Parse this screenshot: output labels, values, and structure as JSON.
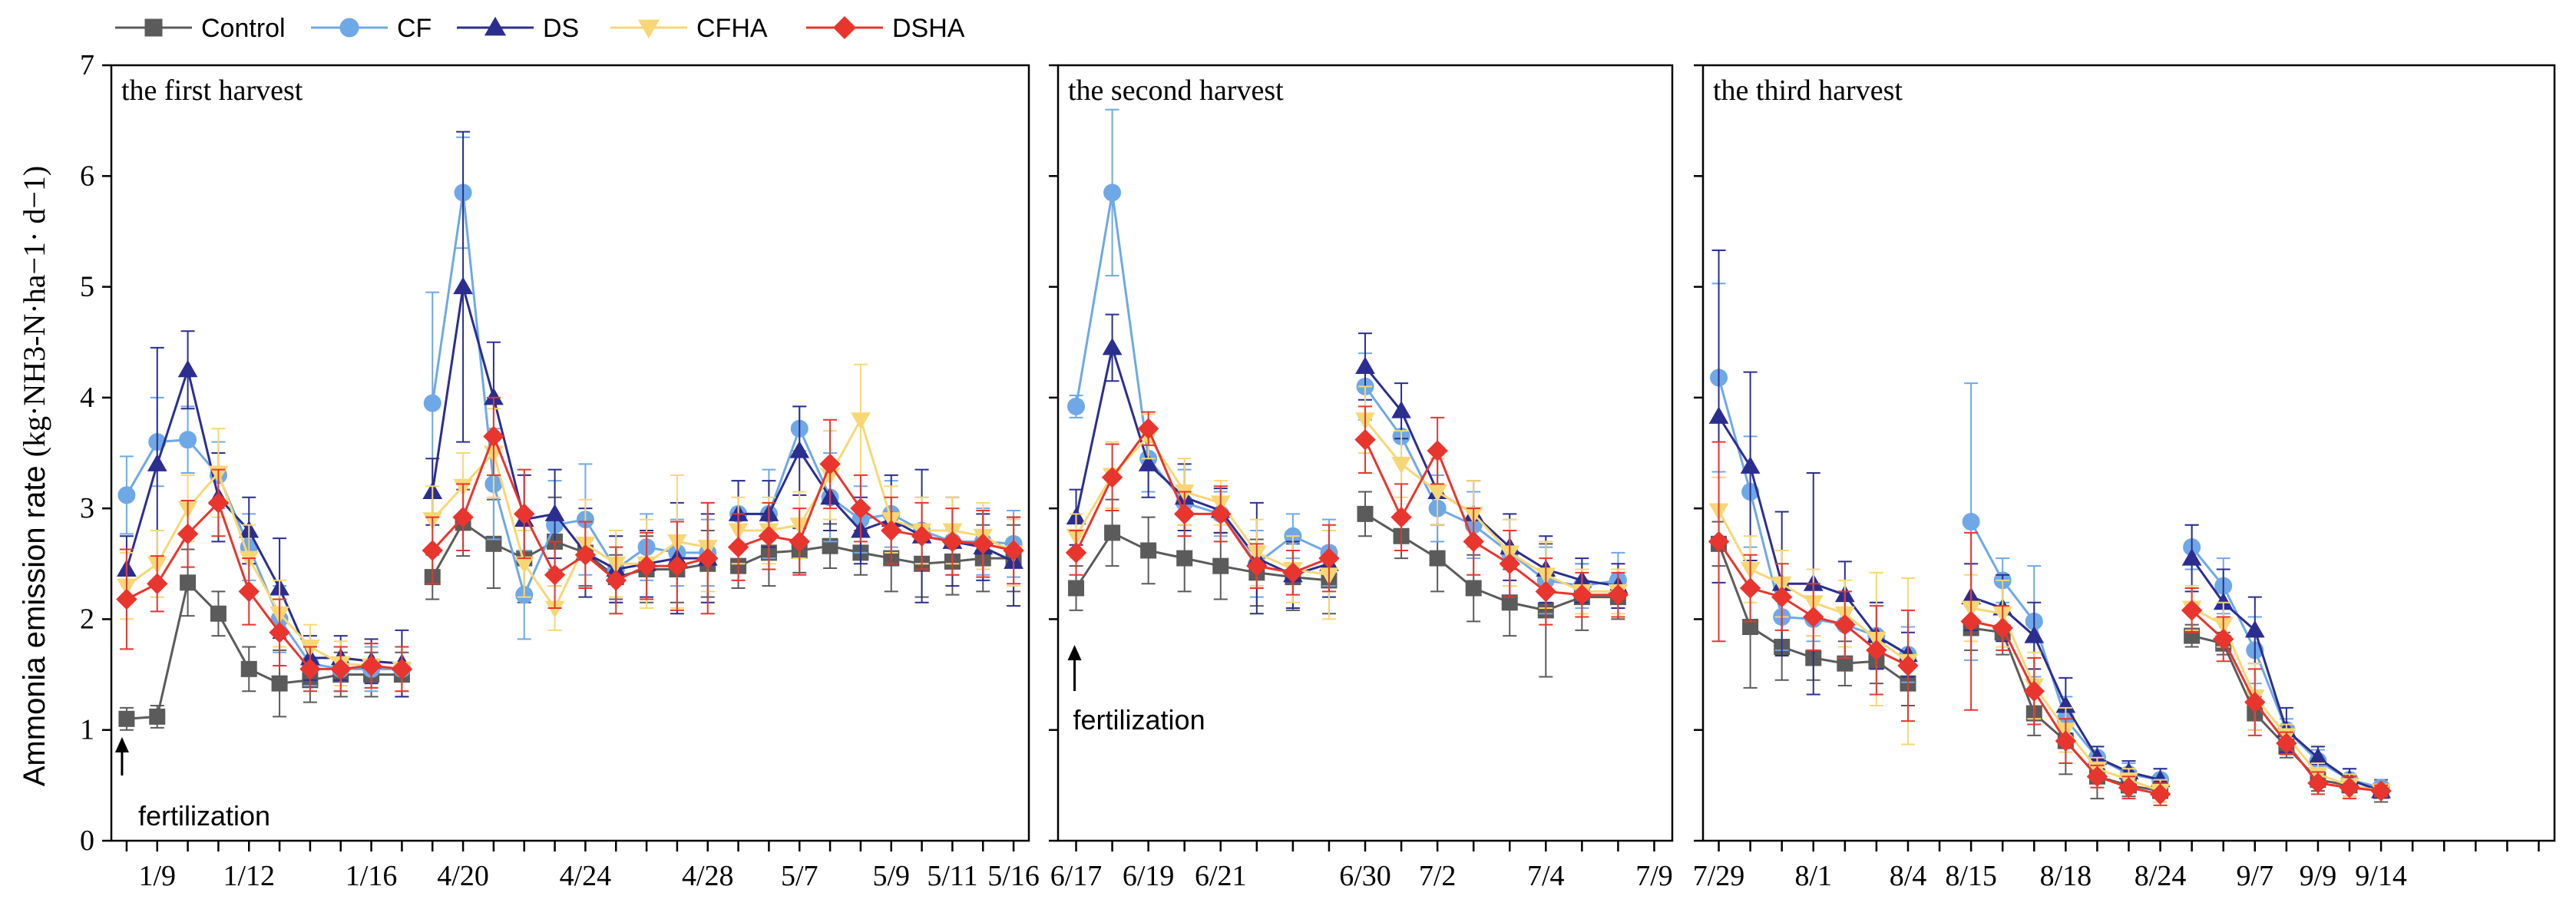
{
  "chart_data": {
    "type": "line",
    "ylabel_prefix": "Ammonia emission rate",
    "ylabel_unit": "kg·NH3-N·ha−1· d−1",
    "ylim": [
      0,
      7
    ],
    "yticks": [
      0,
      1,
      2,
      3,
      4,
      5,
      6,
      7
    ],
    "legend": [
      {
        "name": "Control",
        "color": "#5b5b5b",
        "marker": "square"
      },
      {
        "name": "CF",
        "color": "#6fa8e6",
        "marker": "circle"
      },
      {
        "name": "DS",
        "color": "#2b2e8f",
        "marker": "triangle-up"
      },
      {
        "name": "CFHA",
        "color": "#f7d774",
        "marker": "triangle-down"
      },
      {
        "name": "DSHA",
        "color": "#e8352e",
        "marker": "diamond"
      }
    ],
    "panels": [
      {
        "title": "the first harvest",
        "annotation": "fertilization",
        "xlim": [
          0.5,
          30.5
        ],
        "xticks": [
          {
            "x": 2,
            "label": "1/9"
          },
          {
            "x": 5,
            "label": "1/12"
          },
          {
            "x": 9,
            "label": "1/16"
          },
          {
            "x": 12,
            "label": "4/20"
          },
          {
            "x": 16,
            "label": "4/24"
          },
          {
            "x": 20,
            "label": "4/28"
          },
          {
            "x": 23,
            "label": "5/7"
          },
          {
            "x": 26,
            "label": "5/9"
          },
          {
            "x": 28,
            "label": "5/11"
          },
          {
            "x": 30,
            "label": "5/16"
          }
        ],
        "gap_after": [
          10,
          20
        ],
        "annotation_x": 1,
        "x": [
          1,
          2,
          3,
          4,
          5,
          6,
          7,
          8,
          9,
          10,
          11,
          12,
          13,
          14,
          15,
          16,
          17,
          18,
          19,
          20,
          21,
          22,
          23,
          24,
          25,
          26,
          27,
          28,
          29,
          30
        ],
        "series": [
          {
            "name": "Control",
            "values": [
              1.1,
              1.12,
              2.33,
              2.05,
              1.55,
              1.42,
              1.45,
              1.5,
              1.5,
              1.5,
              2.38,
              2.87,
              2.68,
              2.55,
              2.7,
              2.6,
              2.38,
              2.45,
              2.45,
              2.5,
              2.48,
              2.6,
              2.62,
              2.66,
              2.6,
              2.55,
              2.5,
              2.52,
              2.55,
              2.55
            ],
            "errors": [
              0.1,
              0.1,
              0.3,
              0.2,
              0.2,
              0.3,
              0.2,
              0.2,
              0.2,
              0.2,
              0.2,
              0.3,
              0.4,
              0.4,
              0.4,
              0.3,
              0.2,
              0.3,
              0.3,
              0.3,
              0.2,
              0.3,
              0.2,
              0.2,
              0.2,
              0.3,
              0.3,
              0.3,
              0.3,
              0.3
            ]
          },
          {
            "name": "CF",
            "values": [
              3.12,
              3.6,
              3.62,
              3.3,
              2.65,
              2.0,
              1.6,
              1.55,
              1.55,
              1.55,
              3.95,
              5.85,
              3.22,
              2.22,
              2.85,
              2.9,
              2.45,
              2.65,
              2.6,
              2.6,
              2.95,
              2.95,
              3.72,
              3.1,
              2.9,
              2.95,
              2.8,
              2.7,
              2.7,
              2.68
            ],
            "errors": [
              0.35,
              0.4,
              0.3,
              0.3,
              0.3,
              0.3,
              0.2,
              0.2,
              0.2,
              0.2,
              1.0,
              0.5,
              0.5,
              0.4,
              0.4,
              0.5,
              0.3,
              0.3,
              0.3,
              0.3,
              0.3,
              0.4,
              0.2,
              0.4,
              0.3,
              0.3,
              0.3,
              0.3,
              0.3,
              0.3
            ]
          },
          {
            "name": "DS",
            "values": [
              2.45,
              3.4,
              4.25,
              3.1,
              2.8,
              2.28,
              1.65,
              1.65,
              1.62,
              1.6,
              3.15,
              5.0,
              4.0,
              2.9,
              2.95,
              2.6,
              2.45,
              2.5,
              2.55,
              2.55,
              2.95,
              2.95,
              3.52,
              3.1,
              2.8,
              2.9,
              2.75,
              2.7,
              2.65,
              2.52
            ],
            "errors": [
              0.3,
              1.05,
              0.35,
              0.4,
              0.3,
              0.45,
              0.2,
              0.2,
              0.2,
              0.3,
              0.3,
              1.4,
              0.5,
              0.4,
              0.4,
              0.4,
              0.3,
              0.3,
              0.5,
              0.4,
              0.3,
              0.3,
              0.4,
              0.3,
              0.3,
              0.4,
              0.6,
              0.4,
              0.3,
              0.4
            ]
          },
          {
            "name": "CFHA",
            "values": [
              2.3,
              2.5,
              3.0,
              3.32,
              2.55,
              2.05,
              1.75,
              1.6,
              1.58,
              1.55,
              2.9,
              3.2,
              3.5,
              2.5,
              2.1,
              2.68,
              2.5,
              2.5,
              2.7,
              2.65,
              2.8,
              2.8,
              2.85,
              3.3,
              3.8,
              2.9,
              2.8,
              2.8,
              2.75,
              2.6
            ],
            "errors": [
              0.3,
              0.3,
              0.3,
              0.4,
              0.3,
              0.3,
              0.2,
              0.2,
              0.2,
              0.2,
              0.3,
              0.3,
              0.4,
              0.3,
              0.2,
              0.4,
              0.3,
              0.4,
              0.6,
              0.4,
              0.3,
              0.3,
              0.3,
              0.4,
              0.5,
              0.3,
              0.3,
              0.3,
              0.3,
              0.3
            ]
          },
          {
            "name": "DSHA",
            "values": [
              2.18,
              2.32,
              2.77,
              3.05,
              2.25,
              1.88,
              1.55,
              1.55,
              1.58,
              1.55,
              2.62,
              2.92,
              3.65,
              2.95,
              2.4,
              2.58,
              2.35,
              2.48,
              2.48,
              2.55,
              2.65,
              2.75,
              2.7,
              3.4,
              3.0,
              2.8,
              2.75,
              2.7,
              2.68,
              2.62
            ],
            "errors": [
              0.45,
              0.25,
              0.3,
              0.3,
              0.3,
              0.3,
              0.2,
              0.2,
              0.2,
              0.2,
              0.3,
              0.3,
              0.35,
              0.4,
              0.3,
              0.3,
              0.3,
              0.3,
              0.4,
              0.5,
              0.3,
              0.3,
              0.3,
              0.4,
              0.3,
              0.3,
              0.3,
              0.3,
              0.3,
              0.3
            ]
          }
        ]
      },
      {
        "title": "the second harvest",
        "annotation": "fertilization",
        "xlim": [
          0.5,
          17.5
        ],
        "xticks": [
          {
            "x": 1,
            "label": "6/17"
          },
          {
            "x": 3,
            "label": "6/19"
          },
          {
            "x": 5,
            "label": "6/21"
          },
          {
            "x": 9,
            "label": "6/30"
          },
          {
            "x": 11,
            "label": "7/2"
          },
          {
            "x": 14,
            "label": "7/4"
          },
          {
            "x": 17,
            "label": "7/9"
          }
        ],
        "gap_after": [
          8
        ],
        "annotation_x": 1,
        "x": [
          1,
          2,
          3,
          4,
          5,
          6,
          7,
          8,
          9,
          10,
          11,
          12,
          13,
          14,
          15,
          16
        ],
        "series": [
          {
            "name": "Control",
            "values": [
              2.28,
              2.78,
              2.62,
              2.55,
              2.48,
              2.42,
              2.38,
              2.35,
              2.95,
              2.75,
              2.55,
              2.28,
              2.15,
              2.08,
              2.2,
              2.2
            ],
            "errors": [
              0.2,
              0.3,
              0.3,
              0.3,
              0.3,
              0.3,
              0.3,
              0.3,
              0.2,
              0.2,
              0.3,
              0.3,
              0.3,
              0.6,
              0.3,
              0.2
            ]
          },
          {
            "name": "CF",
            "values": [
              3.92,
              5.85,
              3.45,
              3.05,
              2.95,
              2.5,
              2.75,
              2.6,
              4.1,
              3.65,
              3.0,
              2.85,
              2.6,
              2.35,
              2.3,
              2.35
            ],
            "errors": [
              0.1,
              0.75,
              0.3,
              0.3,
              0.2,
              0.3,
              0.2,
              0.3,
              0.3,
              0.2,
              0.3,
              0.3,
              0.3,
              0.3,
              0.2,
              0.25
            ]
          },
          {
            "name": "DS",
            "values": [
              2.92,
              4.45,
              3.4,
              3.1,
              2.98,
              2.55,
              2.4,
              2.5,
              4.28,
              3.88,
              3.15,
              2.95,
              2.65,
              2.45,
              2.35,
              2.3
            ],
            "errors": [
              0.25,
              0.3,
              0.3,
              0.3,
              0.2,
              0.5,
              0.3,
              0.3,
              0.3,
              0.25,
              0.3,
              0.3,
              0.3,
              0.3,
              0.2,
              0.2
            ]
          },
          {
            "name": "CFHA",
            "values": [
              2.75,
              3.3,
              3.65,
              3.15,
              3.05,
              2.6,
              2.45,
              2.4,
              3.8,
              3.4,
              3.15,
              2.95,
              2.6,
              2.4,
              2.25,
              2.25
            ],
            "errors": [
              0.2,
              0.3,
              0.2,
              0.3,
              0.2,
              0.3,
              0.3,
              0.4,
              0.3,
              0.3,
              0.3,
              0.3,
              0.3,
              0.3,
              0.2,
              0.2
            ]
          },
          {
            "name": "DSHA",
            "values": [
              2.6,
              3.28,
              3.72,
              2.95,
              2.95,
              2.48,
              2.42,
              2.55,
              3.62,
              2.92,
              3.52,
              2.7,
              2.5,
              2.25,
              2.22,
              2.22
            ],
            "errors": [
              0.2,
              0.3,
              0.15,
              0.2,
              0.25,
              0.2,
              0.2,
              0.3,
              0.3,
              0.3,
              0.3,
              0.3,
              0.3,
              0.3,
              0.2,
              0.2
            ]
          }
        ]
      },
      {
        "title": "the third harvest",
        "annotation": "",
        "xlim": [
          0.5,
          27.5
        ],
        "xticks": [
          {
            "x": 1,
            "label": "7/29"
          },
          {
            "x": 4,
            "label": "8/1"
          },
          {
            "x": 7,
            "label": "8/4"
          },
          {
            "x": 9,
            "label": "8/15"
          },
          {
            "x": 12,
            "label": "8/18"
          },
          {
            "x": 15,
            "label": "8/24"
          },
          {
            "x": 18,
            "label": "9/7"
          },
          {
            "x": 20,
            "label": "9/9"
          },
          {
            "x": 22,
            "label": "9/14"
          }
        ],
        "gap_after": [
          7,
          15
        ],
        "annotation_x": 0,
        "x": [
          1,
          2,
          3,
          4,
          5,
          6,
          7,
          9,
          10,
          11,
          12,
          13,
          14,
          15,
          16,
          17,
          18,
          19,
          20,
          21,
          22
        ],
        "series": [
          {
            "name": "Control",
            "values": [
              2.68,
              1.93,
              1.75,
              1.65,
              1.6,
              1.62,
              1.42,
              1.92,
              1.88,
              1.15,
              0.9,
              0.58,
              0.5,
              0.45,
              1.85,
              1.78,
              1.15,
              0.85,
              0.55,
              0.5,
              0.45
            ],
            "errors": [
              0.2,
              0.55,
              0.3,
              0.2,
              0.2,
              0.2,
              0.2,
              0.2,
              0.2,
              0.2,
              0.3,
              0.2,
              0.1,
              0.1,
              0.1,
              0.1,
              0.15,
              0.1,
              0.1,
              0.1,
              0.1
            ]
          },
          {
            "name": "CF",
            "values": [
              4.18,
              3.15,
              2.02,
              2.0,
              1.95,
              1.85,
              1.68,
              2.88,
              2.35,
              1.98,
              1.1,
              0.75,
              0.6,
              0.55,
              2.65,
              2.3,
              1.72,
              1.0,
              0.72,
              0.55,
              0.48
            ],
            "errors": [
              0.85,
              0.5,
              0.3,
              0.2,
              0.3,
              0.3,
              0.25,
              1.25,
              0.2,
              0.5,
              0.2,
              0.1,
              0.1,
              0.1,
              0.2,
              0.25,
              0.3,
              0.1,
              0.1,
              0.1,
              0.05
            ]
          },
          {
            "name": "DS",
            "values": [
              3.83,
              3.38,
              2.32,
              2.32,
              2.22,
              1.85,
              1.68,
              2.2,
              2.1,
              1.85,
              1.22,
              0.75,
              0.62,
              0.55,
              2.55,
              2.15,
              1.9,
              1.0,
              0.75,
              0.55,
              0.45
            ],
            "errors": [
              1.5,
              0.85,
              0.65,
              1.0,
              0.3,
              0.3,
              0.2,
              0.3,
              0.3,
              0.3,
              0.25,
              0.1,
              0.1,
              0.1,
              0.3,
              0.3,
              0.3,
              0.2,
              0.1,
              0.1,
              0.05
            ]
          },
          {
            "name": "CFHA",
            "values": [
              2.98,
              2.45,
              2.32,
              2.15,
              2.05,
              1.82,
              1.62,
              2.1,
              2.05,
              1.4,
              1.0,
              0.65,
              0.55,
              0.45,
              2.1,
              1.95,
              1.3,
              0.95,
              0.6,
              0.5,
              0.45
            ],
            "errors": [
              0.3,
              0.3,
              0.3,
              0.3,
              0.3,
              0.6,
              0.75,
              0.3,
              0.3,
              0.3,
              0.2,
              0.1,
              0.1,
              0.1,
              0.2,
              0.2,
              0.3,
              0.1,
              0.1,
              0.1,
              0.05
            ]
          },
          {
            "name": "DSHA",
            "values": [
              2.7,
              2.28,
              2.2,
              2.02,
              1.95,
              1.72,
              1.58,
              1.98,
              1.92,
              1.35,
              0.9,
              0.58,
              0.48,
              0.42,
              2.08,
              1.82,
              1.25,
              0.88,
              0.52,
              0.48,
              0.45
            ],
            "errors": [
              0.9,
              0.3,
              0.3,
              0.3,
              0.3,
              0.4,
              0.5,
              0.8,
              0.2,
              0.3,
              0.2,
              0.1,
              0.1,
              0.1,
              0.2,
              0.2,
              0.3,
              0.1,
              0.1,
              0.1,
              0.05
            ]
          }
        ]
      }
    ]
  }
}
